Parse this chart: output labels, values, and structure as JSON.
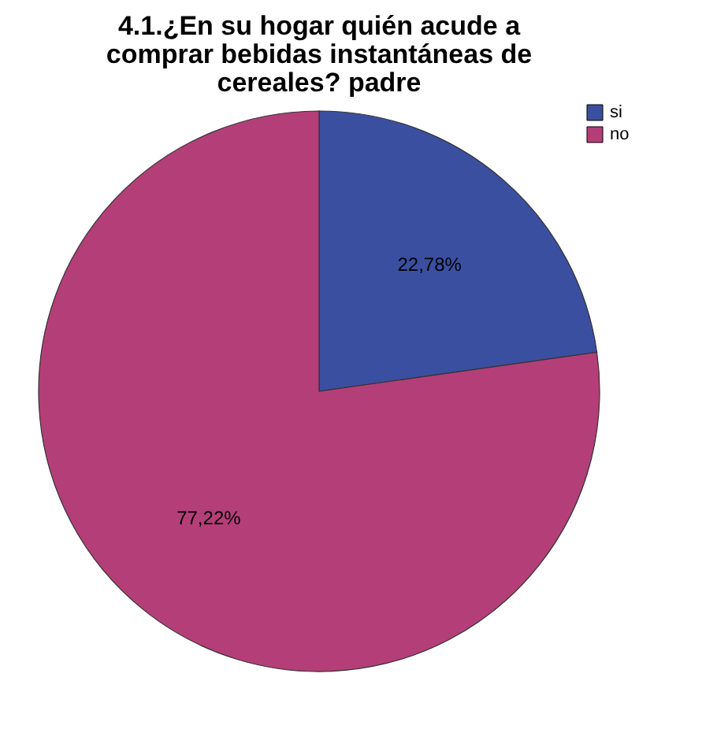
{
  "chart_data": {
    "type": "pie",
    "title": "4.1.¿En su hogar quién acude a comprar bebidas instantáneas de cereales? padre",
    "categories": [
      "si",
      "no"
    ],
    "values": [
      22.78,
      77.22
    ],
    "value_labels": [
      "22,78%",
      "77,22%"
    ],
    "colors": [
      "#3b4fa0",
      "#b43f78"
    ],
    "legend": "top right"
  }
}
